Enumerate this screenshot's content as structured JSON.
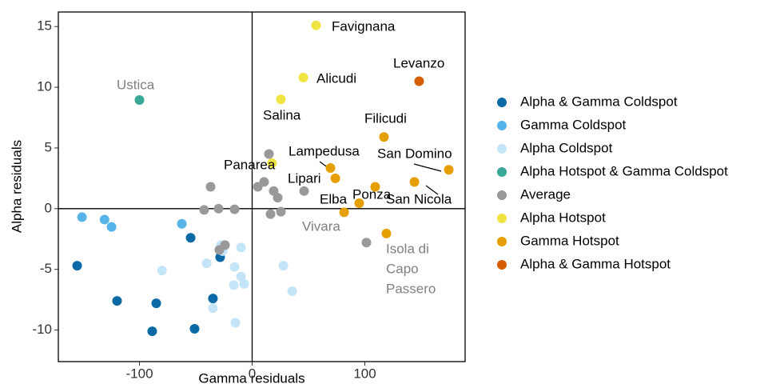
{
  "chart_data": {
    "type": "scatter",
    "x_label": "Gamma residuals",
    "y_label": "Alpha residuals",
    "xlim": [
      -172,
      189
    ],
    "ylim": [
      -12.6,
      16.2
    ],
    "xticks": [
      -100,
      0,
      100
    ],
    "yticks": [
      -10,
      -5,
      0,
      5,
      10,
      15
    ],
    "legend": "right",
    "series": [
      {
        "name": "Alpha & Gamma Coldspot",
        "color": "#0b6aa6",
        "x": [
          -155.3,
          -119.9,
          -85.1,
          -88.7,
          -54.6,
          -51.1,
          -34.8,
          -28.4
        ],
        "values": [
          -4.7,
          -7.6,
          -7.8,
          -10.1,
          -2.4,
          -9.9,
          -7.4,
          -4.0
        ]
      },
      {
        "name": "Gamma Coldspot",
        "color": "#56b4e9",
        "x": [
          -151,
          -131,
          -124.8,
          -62.4
        ],
        "values": [
          -0.7,
          -0.9,
          -1.5,
          -1.25
        ]
      },
      {
        "name": "Alpha Coldspot",
        "color": "#c4e5f7",
        "x": [
          -80,
          -40.4,
          -27.7,
          -26.2,
          -9.9,
          -15.6,
          -9.9,
          -7.1,
          -16.3,
          -34.8,
          -14.9,
          27.7,
          35.5
        ],
        "values": [
          -5.1,
          -4.5,
          -3.0,
          -3.5,
          -3.2,
          -4.8,
          -5.6,
          -6.2,
          -6.3,
          -8.2,
          -9.4,
          -4.7,
          -6.8
        ]
      },
      {
        "name": "Alpha Hotspot & Gamma Coldspot",
        "color": "#3aa896",
        "x": [
          -100
        ],
        "values": [
          8.95
        ]
      },
      {
        "name": "Average",
        "color": "#999999",
        "x": [
          14.9,
          10.6,
          5.0,
          19.1,
          22.7,
          46.1,
          -36.9,
          -42.6,
          -29.8,
          -15.6,
          16.3,
          25.5,
          -24.1,
          -29.1,
          101.4
        ],
        "values": [
          4.5,
          2.2,
          1.8,
          1.45,
          0.9,
          1.45,
          1.8,
          -0.1,
          0,
          -0.05,
          -0.45,
          -0.25,
          -3.0,
          -3.4,
          -2.8
        ]
      },
      {
        "name": "Alpha Hotspot",
        "color": "#f0e442",
        "x": [
          56.7,
          45.4,
          25.5,
          17.7
        ],
        "values": [
          15.1,
          10.8,
          9.0,
          3.75
        ]
      },
      {
        "name": "Gamma Hotspot",
        "color": "#e69f00",
        "x": [
          117,
          69.5,
          73.8,
          174.5,
          144,
          109.2,
          95,
          81.6,
          119.1
        ],
        "values": [
          5.9,
          3.35,
          2.5,
          3.2,
          2.2,
          1.8,
          0.45,
          -0.3,
          -2.05
        ]
      },
      {
        "name": "Alpha & Gamma Hotspot",
        "color": "#d55e00",
        "x": [
          148.2
        ],
        "values": [
          10.5
        ]
      }
    ],
    "annotations": [
      "Favignana",
      "Alicudi",
      "Salina",
      "Levanzo",
      "Filicudi",
      "Lampedusa",
      "San Domino",
      "Panarea",
      "Lipari",
      "Ponza",
      "San Nicola",
      "Elba",
      "Vivara",
      "Ustica",
      "Isola di",
      "Capo",
      "Passero"
    ]
  }
}
